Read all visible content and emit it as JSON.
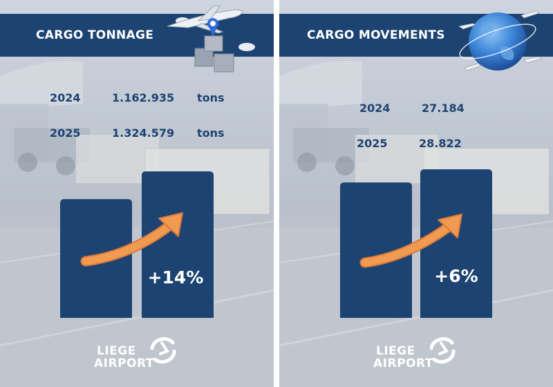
{
  "colors": {
    "navy": "#1c4371",
    "arrow": "#f09a52",
    "arrow_edge": "#d9783a",
    "white": "#ffffff"
  },
  "panels": [
    {
      "title": "CARGO TONNAGE",
      "rows": [
        {
          "year": "2024",
          "value": "1.162.935",
          "unit": "tons"
        },
        {
          "year": "2025",
          "value": "1.324.579",
          "unit": "tons"
        }
      ],
      "change_label": "+14%",
      "icon": "plane-with-boxes-and-location-pin-icon"
    },
    {
      "title": "CARGO MOVEMENTS",
      "rows": [
        {
          "year": "2024",
          "value": "27.184"
        },
        {
          "year": "2025",
          "value": "28.822"
        }
      ],
      "change_label": "+6%",
      "icon": "globe-with-airplanes-icon"
    }
  ],
  "logo": {
    "line1": "LIEGE",
    "line2": "AIRPORT",
    "icon": "liege-airport-swirl-icon"
  },
  "chart_data": [
    {
      "type": "bar",
      "title": "CARGO TONNAGE",
      "categories": [
        "2024",
        "2025"
      ],
      "values": [
        1162935,
        1324579
      ],
      "unit": "tons",
      "annotation": "+14%",
      "trend_arrow": "up"
    },
    {
      "type": "bar",
      "title": "CARGO MOVEMENTS",
      "categories": [
        "2024",
        "2025"
      ],
      "values": [
        27184,
        28822
      ],
      "annotation": "+6%",
      "trend_arrow": "up"
    }
  ]
}
